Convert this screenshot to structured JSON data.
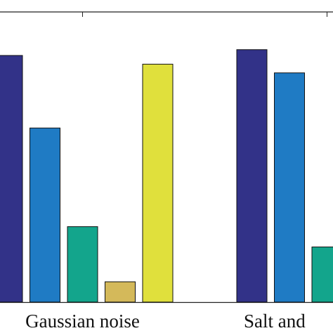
{
  "chart_data": {
    "type": "bar",
    "categories": [
      "Gaussian noise",
      "Salt and"
    ],
    "series": [
      {
        "color": "#323288",
        "values": [
          0.85,
          0.87
        ]
      },
      {
        "color": "#1f7bc4",
        "values": [
          0.6,
          0.79
        ]
      },
      {
        "color": "#13a58c",
        "values": [
          0.26,
          0.19
        ]
      },
      {
        "color": "#d4b95a",
        "values": [
          0.07,
          null
        ]
      },
      {
        "color": "#e0e03c",
        "values": [
          0.82,
          null
        ]
      }
    ],
    "ylim": [
      0,
      1
    ]
  }
}
